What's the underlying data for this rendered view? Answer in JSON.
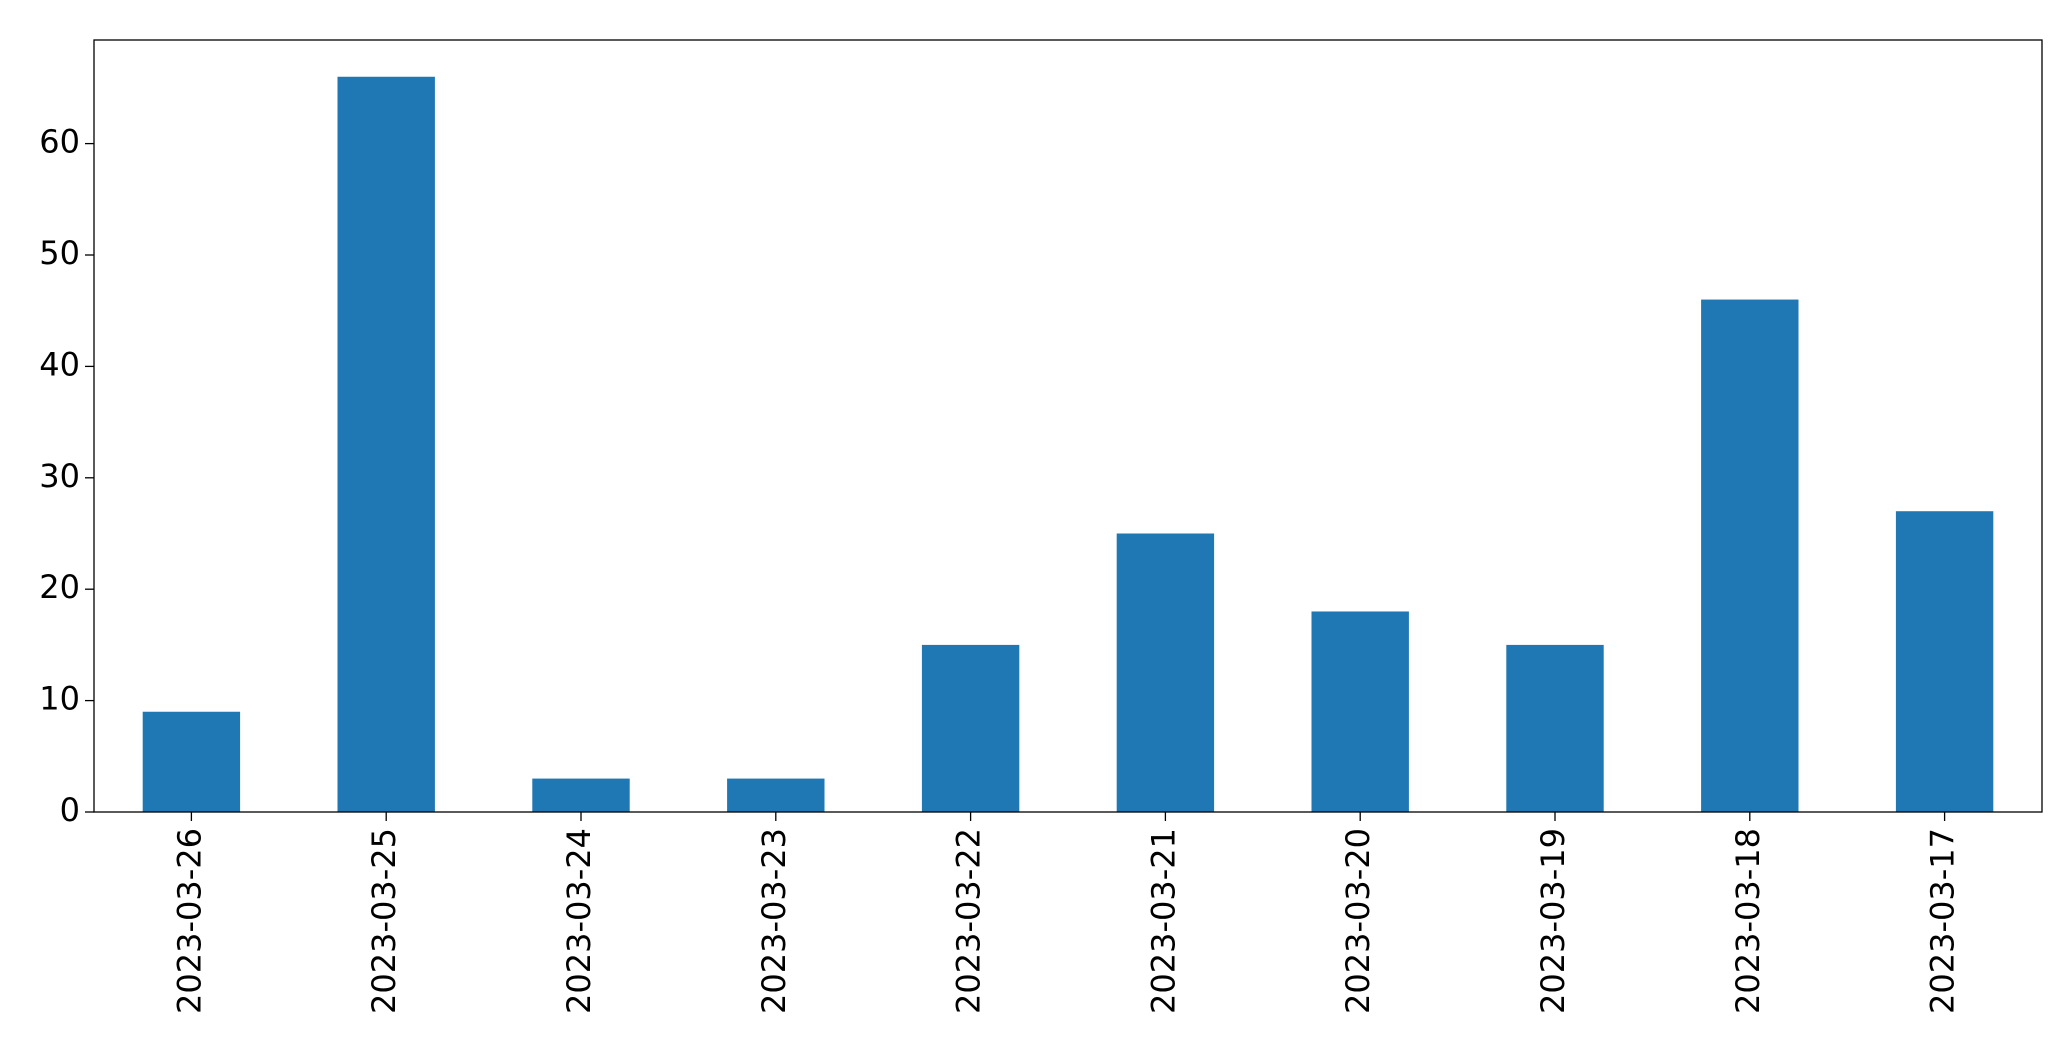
{
  "chart_data": {
    "type": "bar",
    "categories": [
      "2023-03-26",
      "2023-03-25",
      "2023-03-24",
      "2023-03-23",
      "2023-03-22",
      "2023-03-21",
      "2023-03-20",
      "2023-03-19",
      "2023-03-18",
      "2023-03-17"
    ],
    "values": [
      9,
      66,
      3,
      3,
      15,
      25,
      18,
      15,
      46,
      27
    ],
    "color": "#1f77b4",
    "ylim": [
      0,
      69.3
    ],
    "yticks": [
      0,
      10,
      20,
      30,
      40,
      50,
      60
    ],
    "grid": false
  }
}
